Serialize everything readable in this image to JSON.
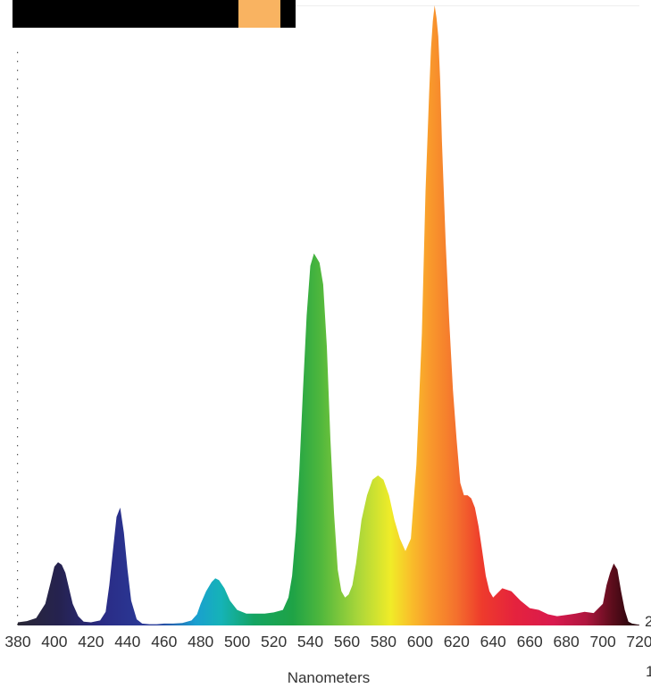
{
  "chart_data": {
    "type": "area",
    "title": "",
    "xlabel": "Nanometers",
    "ylabel": "",
    "xlim": [
      380,
      720
    ],
    "ylim": [
      0,
      100
    ],
    "grid": false,
    "x_ticks": [
      380,
      400,
      420,
      440,
      460,
      480,
      500,
      520,
      540,
      560,
      580,
      600,
      620,
      640,
      660,
      680,
      700,
      720
    ],
    "x_tick_labels": [
      "380",
      "400",
      "420",
      "440",
      "460",
      "480",
      "500",
      "520",
      "540",
      "560",
      "580",
      "600",
      "620",
      "640",
      "660",
      "680",
      "700",
      "720"
    ],
    "series": [
      {
        "x": [
          380,
          385,
          390,
          395,
          398,
          400,
          402,
          404,
          406,
          408,
          410,
          413,
          416,
          420,
          425,
          428,
          430,
          432,
          434,
          436,
          438,
          440,
          442,
          445,
          448,
          452,
          456,
          460,
          465,
          470,
          475,
          478,
          480,
          483,
          486,
          488,
          490,
          493,
          496,
          500,
          505,
          510,
          515,
          520,
          525,
          528,
          530,
          532,
          534,
          536,
          538,
          540,
          542,
          543,
          545,
          547,
          549,
          551,
          553,
          555,
          557,
          559,
          561,
          563,
          565,
          568,
          571,
          574,
          577,
          580,
          583,
          586,
          589,
          592,
          595,
          598,
          601,
          603,
          605,
          606,
          607,
          608,
          609,
          610,
          611,
          612,
          614,
          616,
          618,
          620,
          622,
          624,
          626,
          628,
          630,
          632,
          634,
          636,
          638,
          640,
          645,
          650,
          655,
          660,
          665,
          670,
          675,
          680,
          685,
          690,
          695,
          700,
          702,
          704,
          706,
          708,
          710,
          712,
          714,
          716,
          718,
          720
        ],
        "y": [
          0.5,
          0.7,
          1.2,
          3.5,
          7,
          9.5,
          10.2,
          9.8,
          8.5,
          6,
          3.5,
          1.5,
          0.6,
          0.5,
          0.8,
          2.2,
          6.5,
          12,
          17.5,
          19,
          15,
          9,
          4,
          1,
          0.3,
          0.2,
          0.2,
          0.3,
          0.3,
          0.4,
          0.8,
          1.8,
          3.5,
          5.5,
          7,
          7.6,
          7.3,
          6,
          4,
          2.5,
          1.9,
          1.9,
          1.9,
          2.1,
          2.5,
          4.5,
          8,
          15,
          25,
          38,
          50,
          58,
          60,
          59.5,
          58.5,
          55,
          45,
          30,
          18,
          9,
          5.5,
          4.5,
          5,
          6.5,
          10,
          17,
          21,
          23.5,
          24.2,
          23.5,
          21,
          17,
          14,
          12,
          14,
          26,
          47,
          70,
          86,
          93,
          97.5,
          100,
          98,
          95,
          88,
          78,
          62,
          49,
          38,
          30,
          23,
          21,
          21,
          20.5,
          19,
          16,
          12,
          8,
          5.5,
          4.5,
          6,
          5.5,
          4,
          2.8,
          2.5,
          1.8,
          1.5,
          1.7,
          1.9,
          2.2,
          2,
          3.5,
          6.5,
          8.5,
          10,
          9,
          5.5,
          2.5,
          0.6,
          0.3,
          0.2,
          0.1
        ]
      }
    ]
  },
  "edge_text": {
    "right_mid": "2",
    "right_bottom": "1"
  }
}
